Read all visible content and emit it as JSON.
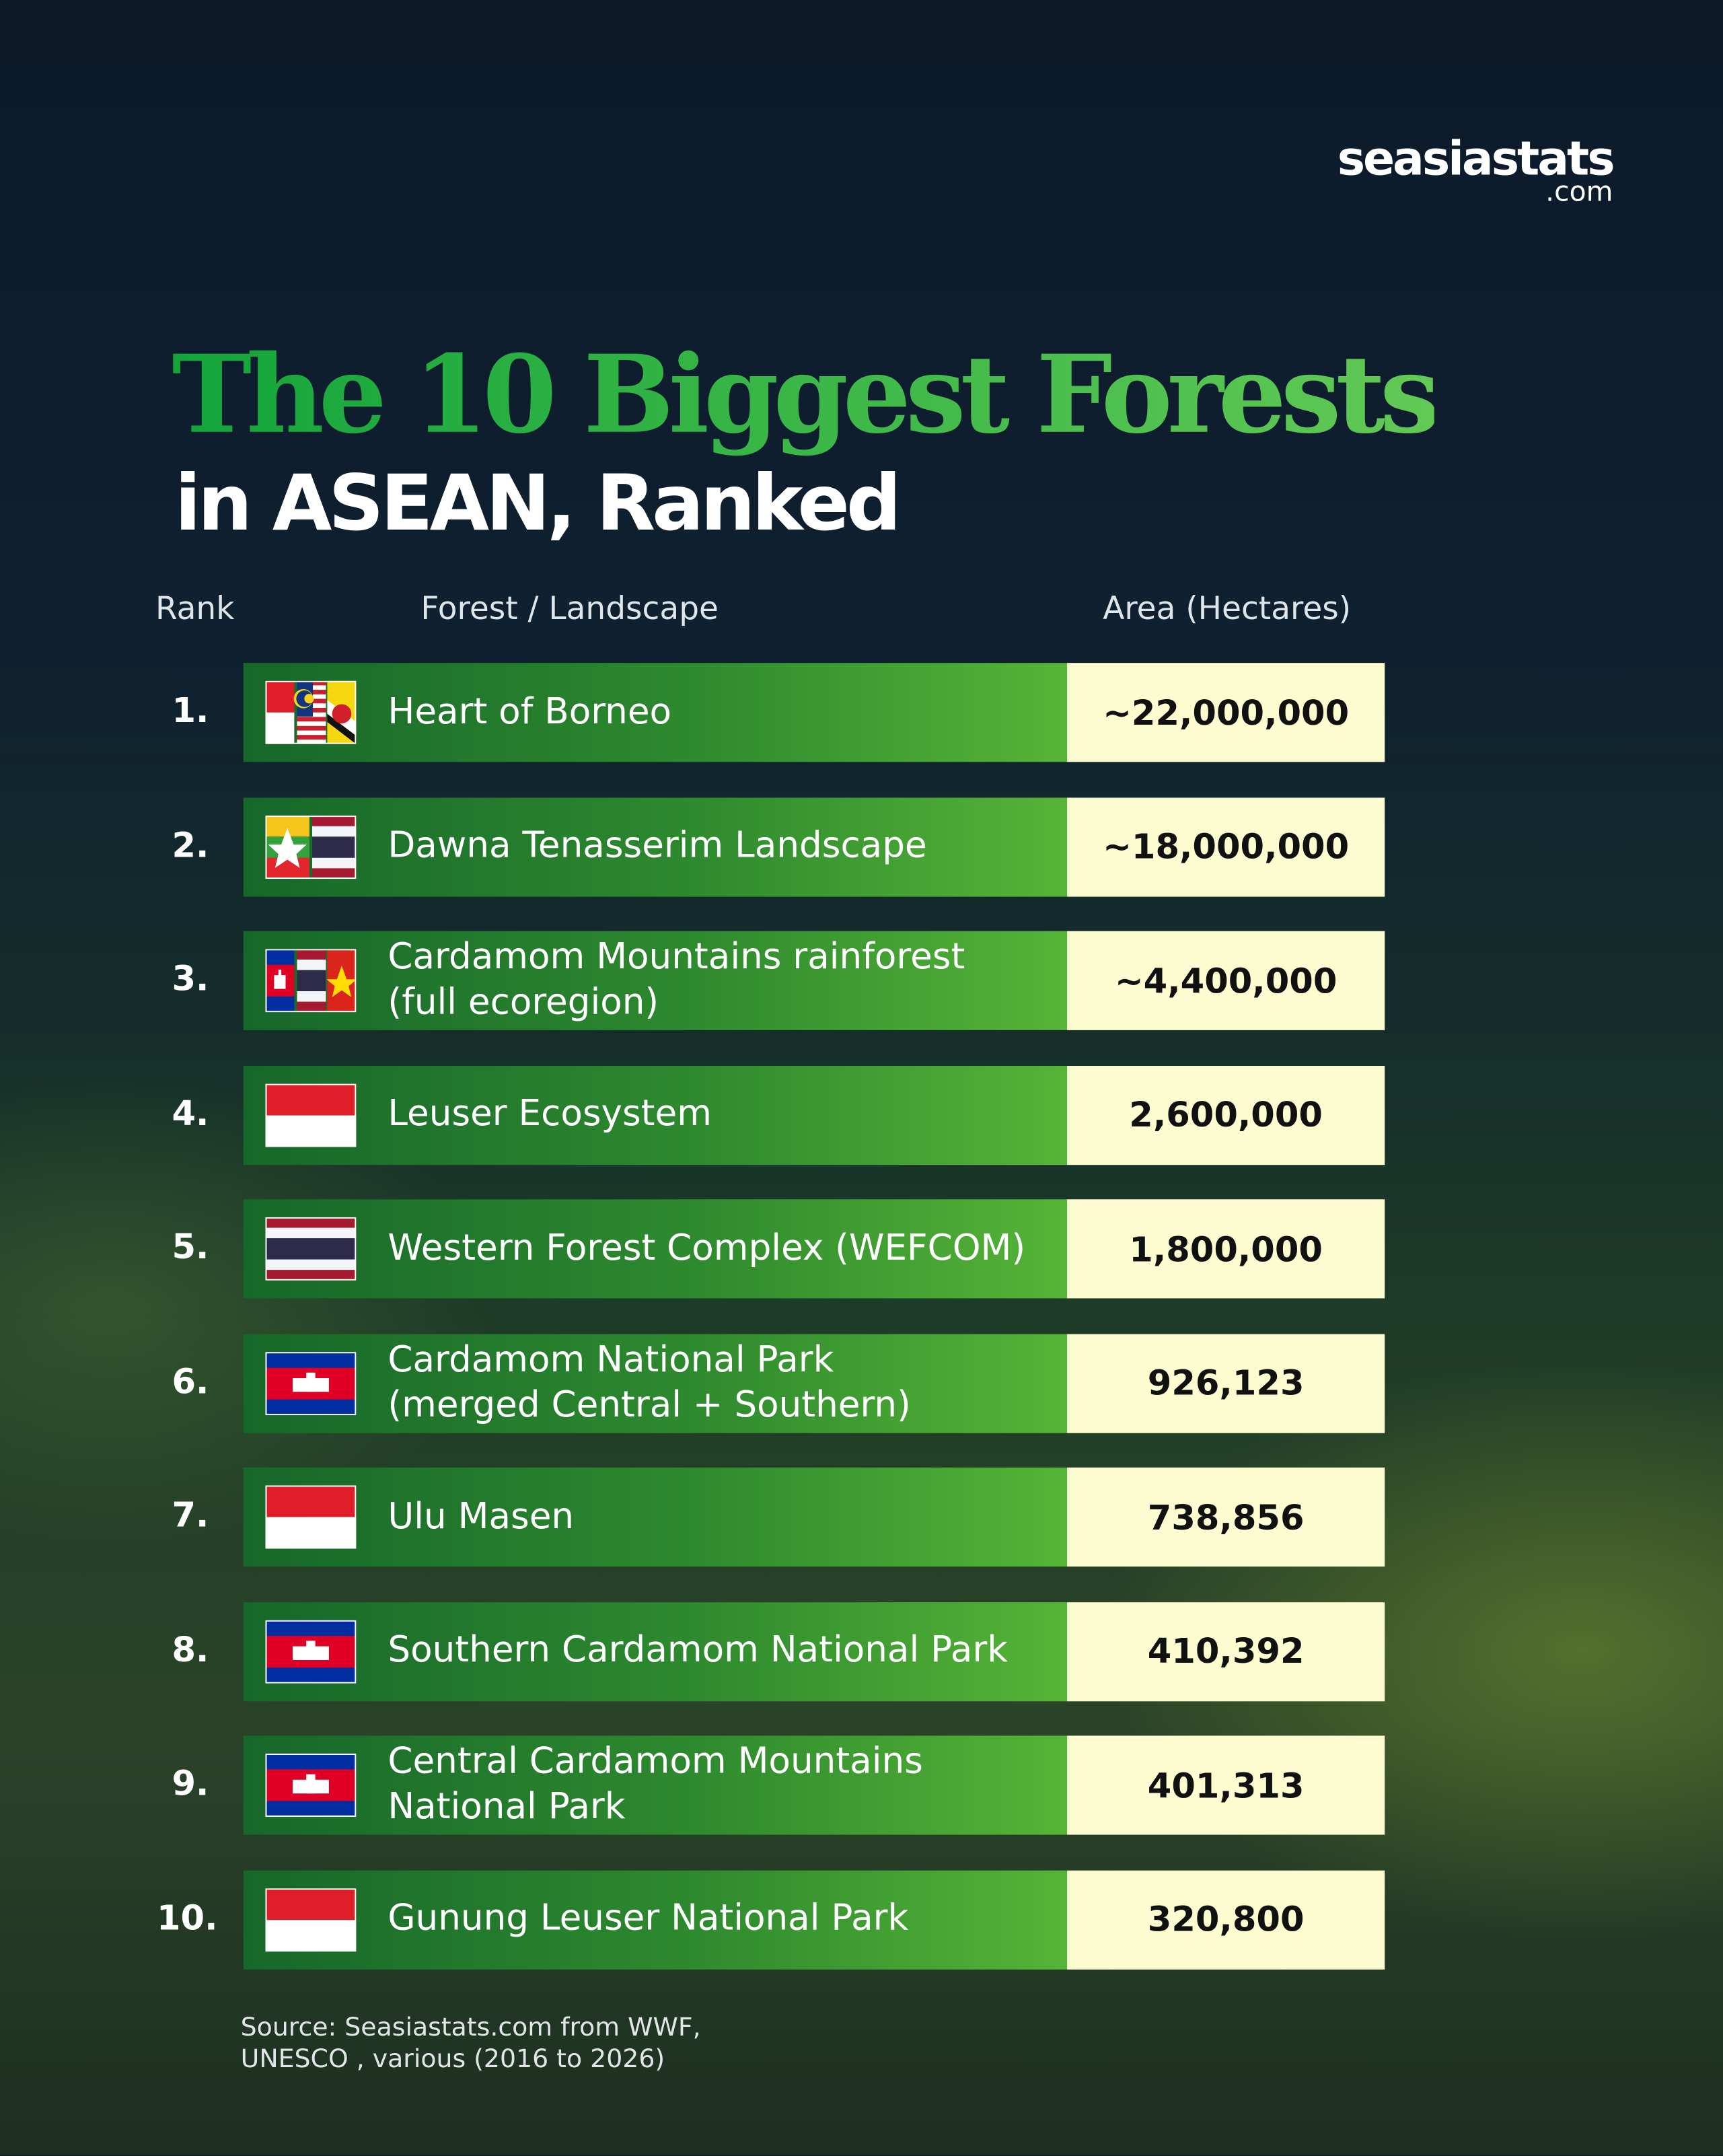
{
  "brand": {
    "name": "seasiastats",
    "suffix": ".com"
  },
  "title": {
    "line1": "The 10 Biggest Forests",
    "line2": "in ASEAN, Ranked"
  },
  "table": {
    "columns": [
      "Rank",
      "Forest / Landscape",
      "Area (Hectares)"
    ],
    "rows": [
      [
        "1.",
        [
          "Heart of Borneo"
        ],
        "~22,000,000"
      ],
      [
        "2.",
        [
          "Dawna Tenasserim Landscape"
        ],
        "~18,000,000"
      ],
      [
        "3.",
        [
          "Cardamom Mountains rainforest",
          "(full ecoregion)"
        ],
        "~4,400,000"
      ],
      [
        "4.",
        [
          "Leuser Ecosystem"
        ],
        "2,600,000"
      ],
      [
        "5.",
        [
          "Western Forest Complex (WEFCOM)"
        ],
        "1,800,000"
      ],
      [
        "6.",
        [
          "Cardamom National Park",
          "(merged Central + Southern)"
        ],
        "926,123"
      ],
      [
        "7.",
        [
          "Ulu Masen"
        ],
        "738,856"
      ],
      [
        "8.",
        [
          "Southern Cardamom National Park"
        ],
        "410,392"
      ],
      [
        "9.",
        [
          "Central Cardamom Mountains",
          "National Park"
        ],
        "401,313"
      ],
      [
        "10.",
        [
          "Gunung Leuser National Park"
        ],
        "320,800"
      ]
    ]
  },
  "source": [
    "Source: Seasiastats.com from WWF,",
    "UNESCO , various (2016 to 2026)"
  ]
}
